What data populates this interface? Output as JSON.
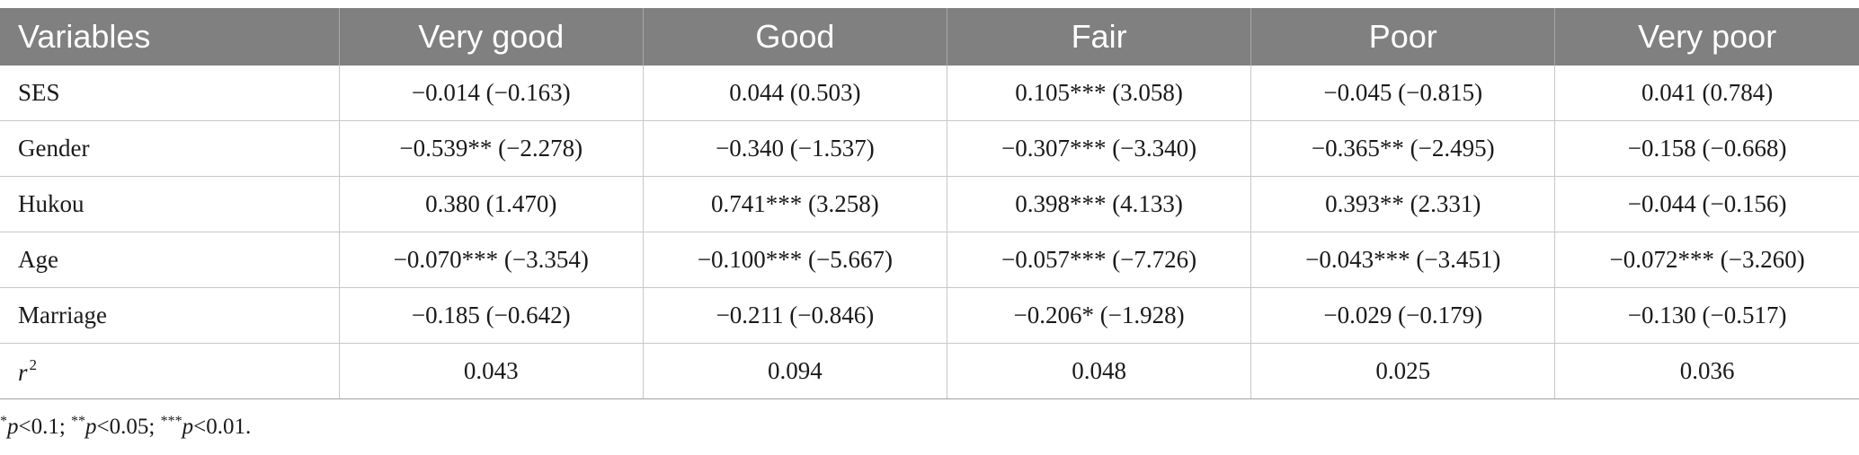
{
  "table": {
    "headers": [
      "Variables",
      "Very good",
      "Good",
      "Fair",
      "Poor",
      "Very poor"
    ],
    "rows": [
      {
        "label": "SES",
        "cells": [
          "−0.014 (−0.163)",
          "0.044 (0.503)",
          "0.105*** (3.058)",
          "−0.045 (−0.815)",
          "0.041 (0.784)"
        ]
      },
      {
        "label": "Gender",
        "cells": [
          "−0.539** (−2.278)",
          "−0.340 (−1.537)",
          "−0.307*** (−3.340)",
          "−0.365** (−2.495)",
          "−0.158 (−0.668)"
        ]
      },
      {
        "label": "Hukou",
        "cells": [
          "0.380 (1.470)",
          "0.741*** (3.258)",
          "0.398*** (4.133)",
          "0.393** (2.331)",
          "−0.044 (−0.156)"
        ]
      },
      {
        "label": "Age",
        "cells": [
          "−0.070*** (−3.354)",
          "−0.100*** (−5.667)",
          "−0.057*** (−7.726)",
          "−0.043*** (−3.451)",
          "−0.072*** (−3.260)"
        ]
      },
      {
        "label": "Marriage",
        "cells": [
          "−0.185 (−0.642)",
          "−0.211 (−0.846)",
          "−0.206* (−1.928)",
          "−0.029 (−0.179)",
          "−0.130 (−0.517)"
        ]
      }
    ],
    "r2_row": {
      "label_base": "r",
      "label_sup": "2",
      "cells": [
        "0.043",
        "0.094",
        "0.048",
        "0.025",
        "0.036"
      ]
    }
  },
  "footnote": {
    "m1": "*",
    "p1": "p",
    "t1": "<0.1; ",
    "m2": "**",
    "p2": "p",
    "t2": "<0.05; ",
    "m3": "***",
    "p3": "p",
    "t3": "<0.01."
  }
}
